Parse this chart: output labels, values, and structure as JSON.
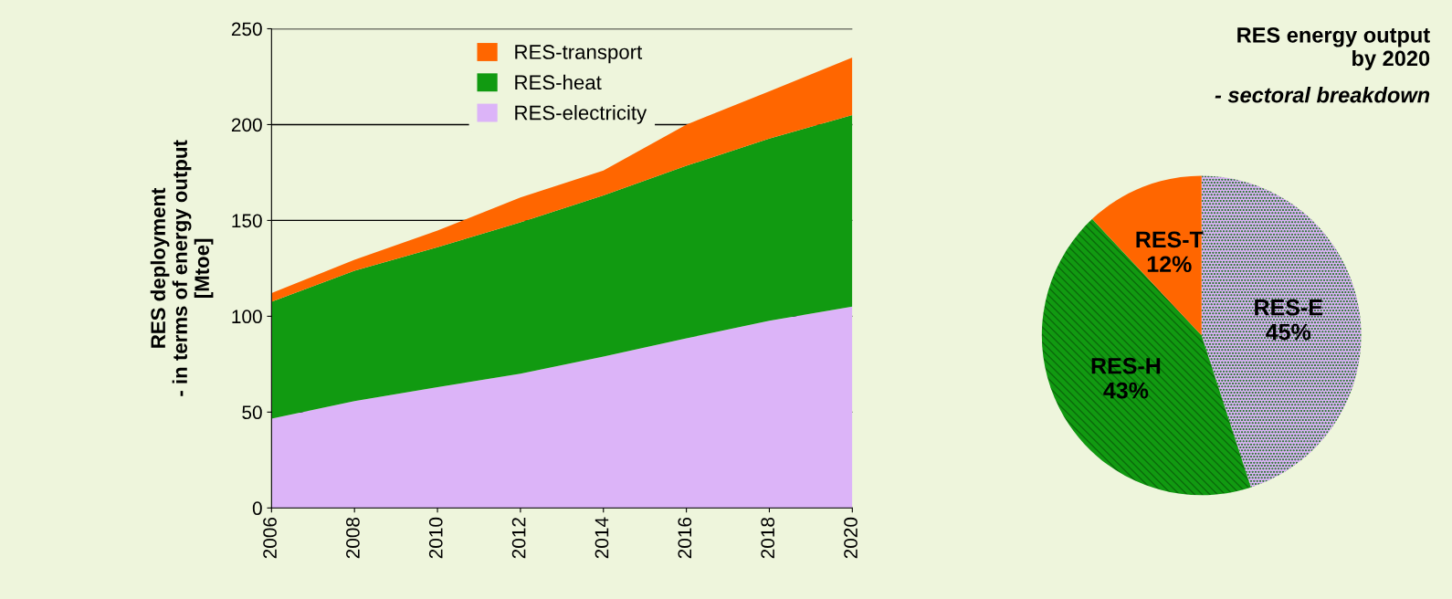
{
  "chart_data": [
    {
      "type": "area",
      "stacked": true,
      "ylabel": "RES deployment\n- in terms of energy output\n[Mtoe]",
      "x": [
        2006,
        2008,
        2010,
        2012,
        2014,
        2016,
        2018,
        2020
      ],
      "series": [
        {
          "name": "RES-electricity",
          "color": "#dcb4f8",
          "values": [
            46.6,
            55.8,
            63,
            70,
            79,
            88.5,
            97.7,
            105
          ]
        },
        {
          "name": "RES-heat",
          "color": "#119a11",
          "values": [
            61,
            68,
            73,
            79,
            84,
            90,
            95,
            100
          ]
        },
        {
          "name": "RES-transport",
          "color": "#ff6600",
          "values": [
            4.5,
            5.7,
            8.7,
            13,
            13,
            21.5,
            24.7,
            30
          ]
        }
      ],
      "xlim": [
        2006,
        2020
      ],
      "xticks": [
        2006,
        2008,
        2010,
        2012,
        2014,
        2016,
        2018,
        2020
      ],
      "ylim": [
        0,
        250
      ],
      "yticks": [
        0,
        50,
        100,
        150,
        200,
        250
      ],
      "grid": "y",
      "legend": "top"
    },
    {
      "type": "pie",
      "title": "RES energy output\nby 2020",
      "subtitle": "- sectoral breakdown",
      "categories": [
        "RES-E",
        "RES-H",
        "RES-T"
      ],
      "values": [
        45,
        43,
        12
      ],
      "value_labels": [
        "45%",
        "43%",
        "12%"
      ],
      "colors": [
        "#dcb4f8",
        "#119a11",
        "#ff6600"
      ]
    }
  ]
}
